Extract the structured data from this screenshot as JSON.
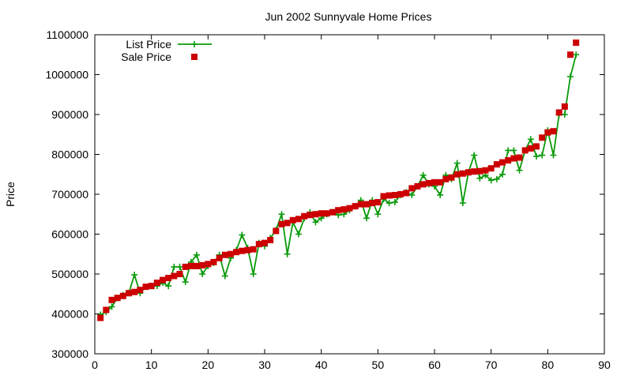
{
  "chart_data": {
    "type": "line",
    "title": "Jun 2002 Sunnyvale Home Prices",
    "xlabel": "",
    "ylabel": "Price",
    "xlim": [
      0,
      90
    ],
    "ylim": [
      300000,
      1100000
    ],
    "x_ticks": [
      0,
      10,
      20,
      30,
      40,
      50,
      60,
      70,
      80,
      90
    ],
    "y_ticks": [
      300000,
      400000,
      500000,
      600000,
      700000,
      800000,
      900000,
      1000000,
      1100000
    ],
    "x_tick_labels": [
      "0",
      "10",
      "20",
      "30",
      "40",
      "50",
      "60",
      "70",
      "80",
      "90"
    ],
    "y_tick_labels": [
      "300000",
      "400000",
      "500000",
      "600000",
      "700000",
      "800000",
      "900000",
      "1000000",
      "1100000"
    ],
    "grid": false,
    "legend_position": "top-left",
    "series": [
      {
        "name": "List Price",
        "style": "line-with-plus-markers",
        "color": "#0a9a0a",
        "x": [
          1,
          2,
          3,
          4,
          5,
          6,
          7,
          8,
          9,
          10,
          11,
          12,
          13,
          14,
          15,
          16,
          17,
          18,
          19,
          20,
          21,
          22,
          23,
          24,
          25,
          26,
          27,
          28,
          29,
          30,
          31,
          32,
          33,
          34,
          35,
          36,
          37,
          38,
          39,
          40,
          41,
          42,
          43,
          44,
          45,
          46,
          47,
          48,
          49,
          50,
          51,
          52,
          53,
          54,
          55,
          56,
          57,
          58,
          59,
          60,
          61,
          62,
          63,
          64,
          65,
          66,
          67,
          68,
          69,
          70,
          71,
          72,
          73,
          74,
          75,
          76,
          77,
          78,
          79,
          80,
          81,
          82,
          83,
          84,
          85
        ],
        "values": [
          398000,
          405000,
          418000,
          440000,
          447000,
          452000,
          498000,
          452000,
          468000,
          470000,
          470000,
          478000,
          470000,
          518000,
          518000,
          480000,
          530000,
          548000,
          500000,
          520000,
          528000,
          548000,
          495000,
          540000,
          560000,
          598000,
          565000,
          500000,
          578000,
          570000,
          590000,
          610000,
          650000,
          550000,
          630000,
          600000,
          640000,
          655000,
          630000,
          640000,
          650000,
          655000,
          648000,
          650000,
          660000,
          670000,
          685000,
          640000,
          685000,
          650000,
          688000,
          678000,
          680000,
          698000,
          705000,
          698000,
          720000,
          748000,
          725000,
          720000,
          698000,
          748000,
          738000,
          778000,
          678000,
          755000,
          798000,
          740000,
          748000,
          735000,
          738000,
          750000,
          810000,
          810000,
          760000,
          810000,
          838000,
          795000,
          798000,
          860000,
          798000,
          900000,
          900000,
          995000,
          1050000
        ]
      },
      {
        "name": "Sale Price",
        "style": "square-markers",
        "color": "#cc0000",
        "x": [
          1,
          2,
          3,
          4,
          5,
          6,
          7,
          8,
          9,
          10,
          11,
          12,
          13,
          14,
          15,
          16,
          17,
          18,
          19,
          20,
          21,
          22,
          23,
          24,
          25,
          26,
          27,
          28,
          29,
          30,
          31,
          32,
          33,
          34,
          35,
          36,
          37,
          38,
          39,
          40,
          41,
          42,
          43,
          44,
          45,
          46,
          47,
          48,
          49,
          50,
          51,
          52,
          53,
          54,
          55,
          56,
          57,
          58,
          59,
          60,
          61,
          62,
          63,
          64,
          65,
          66,
          67,
          68,
          69,
          70,
          71,
          72,
          73,
          74,
          75,
          76,
          77,
          78,
          79,
          80,
          81,
          82,
          83,
          84,
          85
        ],
        "values": [
          390000,
          410000,
          435000,
          440000,
          445000,
          452000,
          455000,
          460000,
          468000,
          470000,
          478000,
          485000,
          490000,
          495000,
          500000,
          518000,
          520000,
          520000,
          522000,
          525000,
          530000,
          540000,
          548000,
          550000,
          555000,
          558000,
          560000,
          562000,
          575000,
          578000,
          585000,
          608000,
          625000,
          628000,
          635000,
          638000,
          645000,
          648000,
          650000,
          652000,
          652000,
          655000,
          660000,
          662000,
          665000,
          670000,
          675000,
          675000,
          678000,
          680000,
          695000,
          697000,
          698000,
          700000,
          703000,
          715000,
          720000,
          725000,
          728000,
          730000,
          730000,
          738000,
          742000,
          750000,
          752000,
          755000,
          757000,
          758000,
          760000,
          765000,
          775000,
          780000,
          785000,
          790000,
          792000,
          810000,
          815000,
          820000,
          842000,
          855000,
          858000,
          905000,
          920000,
          1050000,
          1080000
        ]
      }
    ]
  }
}
